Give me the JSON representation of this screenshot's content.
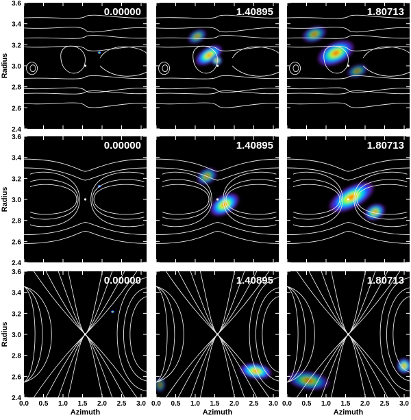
{
  "chart_data": {
    "type": "heatmap",
    "layout": {
      "rows": 3,
      "cols": 3
    },
    "xlabel": "Azimuth",
    "ylabel": "Radius",
    "xlim": [
      0.0,
      3.14
    ],
    "ylim": [
      2.4,
      3.6
    ],
    "x_ticks": [
      "0.0",
      "0.5",
      "1.0",
      "1.5",
      "2.0",
      "2.5",
      "3.0"
    ],
    "x_tick_values": [
      0.0,
      0.5,
      1.0,
      1.5,
      2.0,
      2.5,
      3.0
    ],
    "y_ticks": [
      "2.4",
      "2.6",
      "2.8",
      "3.0",
      "3.2",
      "3.4",
      "3.6"
    ],
    "y_tick_values": [
      2.4,
      2.6,
      2.8,
      3.0,
      3.2,
      3.4,
      3.6
    ],
    "background_color": "#000000",
    "contour_color": "#e8e8e8",
    "colormap": [
      "#000000",
      "#5a1a8a",
      "#1f3cff",
      "#00d0ff",
      "#30ff60",
      "#ffff00",
      "#ff8000",
      "#ff0000"
    ],
    "times": [
      "0.00000",
      "1.40895",
      "1.80713"
    ],
    "center_point": {
      "x": 1.57,
      "y": 3.0
    },
    "rows": [
      {
        "contour_type": "thin",
        "panels": [
          {
            "time": "0.00000",
            "blobs": [
              {
                "x": 1.93,
                "y": 3.125,
                "sx": 0.04,
                "sy": 0.006,
                "intensity": 1.0
              }
            ]
          },
          {
            "time": "1.40895",
            "blobs": [
              {
                "x": 1.35,
                "y": 3.1,
                "sx": 0.42,
                "sy": 0.05,
                "intensity": 1.0,
                "tilt": -0.55
              },
              {
                "x": 1.05,
                "y": 3.28,
                "sx": 0.28,
                "sy": 0.04,
                "intensity": 0.7,
                "tilt": -0.5
              },
              {
                "x": 1.55,
                "y": 3.05,
                "sx": 0.15,
                "sy": 0.03,
                "intensity": 0.95
              }
            ]
          },
          {
            "time": "1.80713",
            "blobs": [
              {
                "x": 1.25,
                "y": 3.12,
                "sx": 0.55,
                "sy": 0.07,
                "intensity": 0.95,
                "tilt": -0.45
              },
              {
                "x": 0.7,
                "y": 3.3,
                "sx": 0.35,
                "sy": 0.05,
                "intensity": 0.7,
                "tilt": -0.35
              },
              {
                "x": 1.8,
                "y": 2.95,
                "sx": 0.3,
                "sy": 0.04,
                "intensity": 0.6,
                "tilt": -0.35
              }
            ]
          }
        ]
      },
      {
        "contour_type": "medium",
        "panels": [
          {
            "time": "0.00000",
            "blobs": [
              {
                "x": 1.93,
                "y": 3.125,
                "sx": 0.04,
                "sy": 0.006,
                "intensity": 1.0
              }
            ]
          },
          {
            "time": "1.40895",
            "blobs": [
              {
                "x": 1.75,
                "y": 2.95,
                "sx": 0.45,
                "sy": 0.06,
                "intensity": 1.0,
                "tilt": -0.55
              },
              {
                "x": 1.3,
                "y": 3.22,
                "sx": 0.3,
                "sy": 0.05,
                "intensity": 0.7,
                "tilt": -0.5
              }
            ]
          },
          {
            "time": "1.80713",
            "blobs": [
              {
                "x": 1.65,
                "y": 3.02,
                "sx": 0.7,
                "sy": 0.07,
                "intensity": 1.0,
                "tilt": -0.5
              },
              {
                "x": 2.25,
                "y": 2.88,
                "sx": 0.3,
                "sy": 0.05,
                "intensity": 0.9,
                "tilt": -0.45
              }
            ]
          }
        ]
      },
      {
        "contour_type": "wide",
        "panels": [
          {
            "time": "0.00000",
            "blobs": [
              {
                "x": 2.27,
                "y": 3.215,
                "sx": 0.04,
                "sy": 0.006,
                "intensity": 1.0
              }
            ]
          },
          {
            "time": "1.40895",
            "blobs": [
              {
                "x": 2.55,
                "y": 2.65,
                "sx": 0.45,
                "sy": 0.05,
                "intensity": 1.0,
                "tilt": 0.15
              },
              {
                "x": 0.1,
                "y": 2.52,
                "sx": 0.15,
                "sy": 0.05,
                "intensity": 0.5
              }
            ]
          },
          {
            "time": "1.80713",
            "blobs": [
              {
                "x": 0.55,
                "y": 2.56,
                "sx": 0.6,
                "sy": 0.06,
                "intensity": 0.7,
                "tilt": 0.15
              },
              {
                "x": 3.0,
                "y": 2.7,
                "sx": 0.2,
                "sy": 0.05,
                "intensity": 0.95
              }
            ]
          }
        ]
      }
    ]
  }
}
